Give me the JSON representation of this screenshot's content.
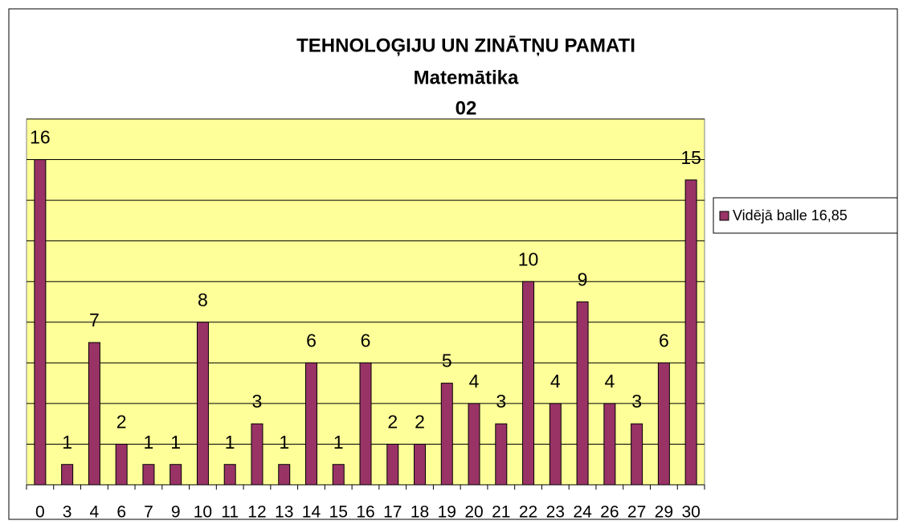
{
  "chart_data": {
    "type": "bar",
    "title": [
      "TEHNOLOĢIJU UN ZINĀTŅU PAMATI",
      "Matemātika",
      "02"
    ],
    "categories": [
      "0",
      "3",
      "4",
      "6",
      "7",
      "9",
      "10",
      "11",
      "12",
      "13",
      "14",
      "15",
      "16",
      "17",
      "18",
      "19",
      "20",
      "21",
      "22",
      "23",
      "24",
      "26",
      "27",
      "29",
      "30"
    ],
    "series": [
      {
        "name": "Vidējā balle 16,85",
        "color": "#993366",
        "values": [
          16,
          1,
          7,
          2,
          1,
          1,
          8,
          1,
          3,
          1,
          6,
          1,
          6,
          2,
          2,
          5,
          4,
          3,
          10,
          4,
          9,
          4,
          3,
          6,
          15
        ]
      }
    ],
    "ylim": [
      0,
      18
    ],
    "yticks": [
      0,
      2,
      4,
      6,
      8,
      10,
      12,
      14,
      16,
      18
    ],
    "grid": true,
    "legend": "right"
  }
}
